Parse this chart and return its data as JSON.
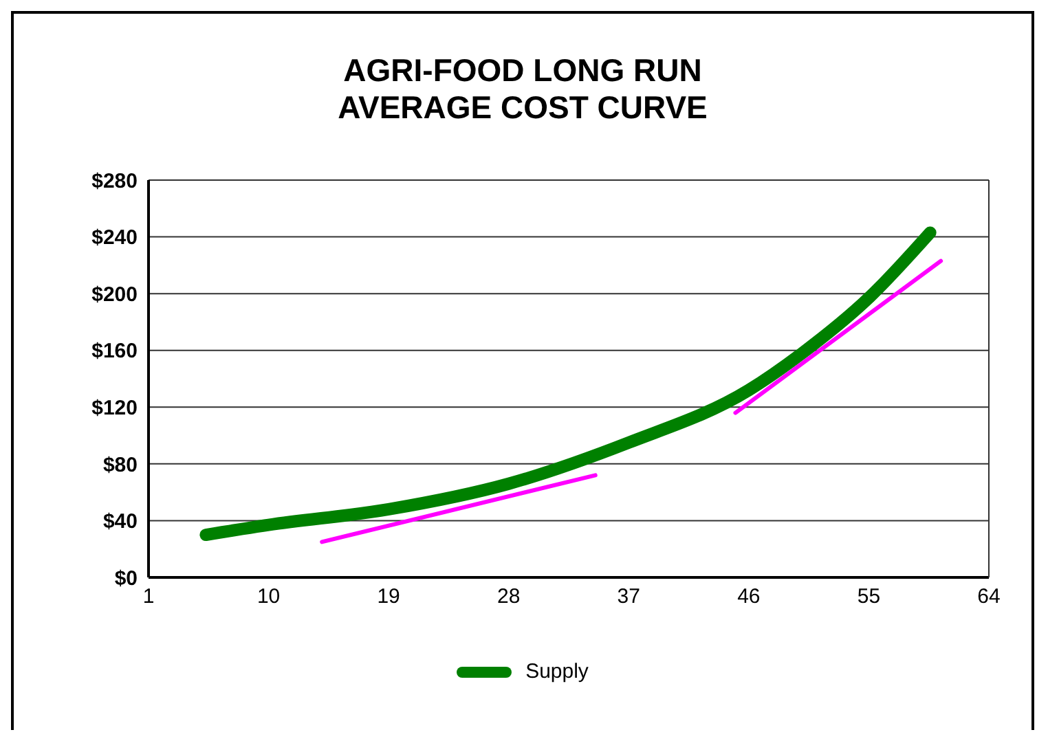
{
  "chart_data": {
    "type": "line",
    "title": "AGRI-FOOD LONG RUN\nAVERAGE COST CURVE",
    "xlim": [
      1,
      64
    ],
    "xticks": [
      1,
      10,
      19,
      28,
      37,
      46,
      55,
      64
    ],
    "ylim": [
      0,
      280
    ],
    "yticks": [
      {
        "value": 0,
        "label": "$0"
      },
      {
        "value": 40,
        "label": "$40"
      },
      {
        "value": 80,
        "label": "$80"
      },
      {
        "value": 120,
        "label": "$120"
      },
      {
        "value": 160,
        "label": "$160"
      },
      {
        "value": 200,
        "label": "$200"
      },
      {
        "value": 240,
        "label": "$240"
      },
      {
        "value": 280,
        "label": "$280"
      }
    ],
    "grid": "y",
    "legend": "bottom",
    "marker": "none",
    "series": [
      {
        "name": "Supply",
        "color": "#008000",
        "x": [
          5.3,
          10,
          19,
          28,
          37,
          46,
          50,
          55,
          59.6
        ],
        "values": [
          30,
          37,
          48,
          66,
          95,
          132,
          158,
          197,
          243
        ]
      },
      {
        "type": "line",
        "color": "#ff00ff",
        "x": [
          14,
          34.5
        ],
        "values": [
          25,
          72
        ]
      },
      {
        "type": "line",
        "color": "#ff00ff",
        "x": [
          45,
          60.4
        ],
        "values": [
          116,
          223
        ]
      }
    ]
  }
}
